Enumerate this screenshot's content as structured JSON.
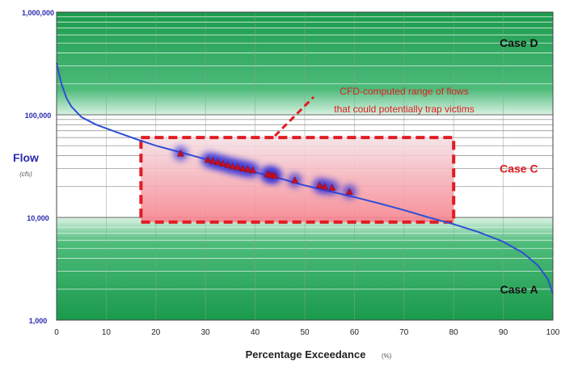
{
  "chart_data": {
    "type": "line",
    "title": "",
    "xlabel": "Percentage Exceedance",
    "xlabel_unit": "(%)",
    "ylabel": "Flow",
    "ylabel_unit": "(cfs)",
    "y_scale": "log",
    "xlim": [
      0,
      100
    ],
    "ylim": [
      1000,
      1000000
    ],
    "x_ticks": [
      0,
      10,
      20,
      30,
      40,
      50,
      60,
      70,
      80,
      90,
      100
    ],
    "y_ticks": [
      1000,
      10000,
      100000,
      1000000
    ],
    "y_tick_labels": [
      "1,000",
      "10,000",
      "100,000",
      "1,000,000"
    ],
    "grid": true,
    "series": [
      {
        "type": "line",
        "color": "#2f4fd6",
        "x": [
          0,
          0.5,
          1,
          2,
          3,
          5,
          8,
          12,
          16,
          20,
          25,
          30,
          35,
          40,
          45,
          50,
          55,
          60,
          65,
          70,
          75,
          80,
          85,
          90,
          94,
          97,
          99,
          100
        ],
        "y": [
          320000,
          250000,
          200000,
          145000,
          120000,
          95000,
          80000,
          68000,
          58000,
          50000,
          43000,
          37000,
          32000,
          27500,
          24000,
          20500,
          18000,
          15800,
          13700,
          11800,
          10000,
          8600,
          7200,
          5800,
          4500,
          3400,
          2500,
          1800
        ]
      },
      {
        "type": "scatter",
        "marker": "triangle",
        "color": "#c0102a",
        "x": [
          25,
          30.5,
          31.5,
          32.5,
          33.5,
          34.5,
          35.5,
          36.5,
          37.5,
          38.5,
          39.5,
          42.5,
          43,
          43.5,
          44,
          48,
          53,
          54,
          55.5,
          59
        ],
        "y": [
          42000,
          36500,
          35500,
          34500,
          33500,
          32500,
          31500,
          31000,
          30000,
          29500,
          28800,
          26500,
          26000,
          25800,
          25500,
          23000,
          20500,
          20000,
          19500,
          17800
        ]
      }
    ],
    "bands": [
      {
        "label": "Case D",
        "y_from": 100000,
        "y_to": 1000000,
        "color": "#1f9e50"
      },
      {
        "label": "Case C",
        "y_from": 10000,
        "y_to": 100000,
        "color": "#ffffff"
      },
      {
        "label": "Case A",
        "y_from": 1000,
        "y_to": 10000,
        "color": "#1f9e50"
      }
    ],
    "highlight_box": {
      "x": [
        17,
        80
      ],
      "y": [
        9000,
        60000
      ],
      "color": "#e11b22"
    },
    "annotation": {
      "lines": [
        "CFD-computed range of flows",
        "that could potentially trap victims"
      ],
      "color": "#e11b22"
    },
    "case_labels": [
      {
        "text": "Case D",
        "x": 97,
        "y": 500000,
        "color": "#111111"
      },
      {
        "text": "Case C",
        "x": 97,
        "y": 30000,
        "color": "#e11b22"
      },
      {
        "text": "Case A",
        "x": 97,
        "y": 2000,
        "color": "#111111"
      }
    ]
  }
}
